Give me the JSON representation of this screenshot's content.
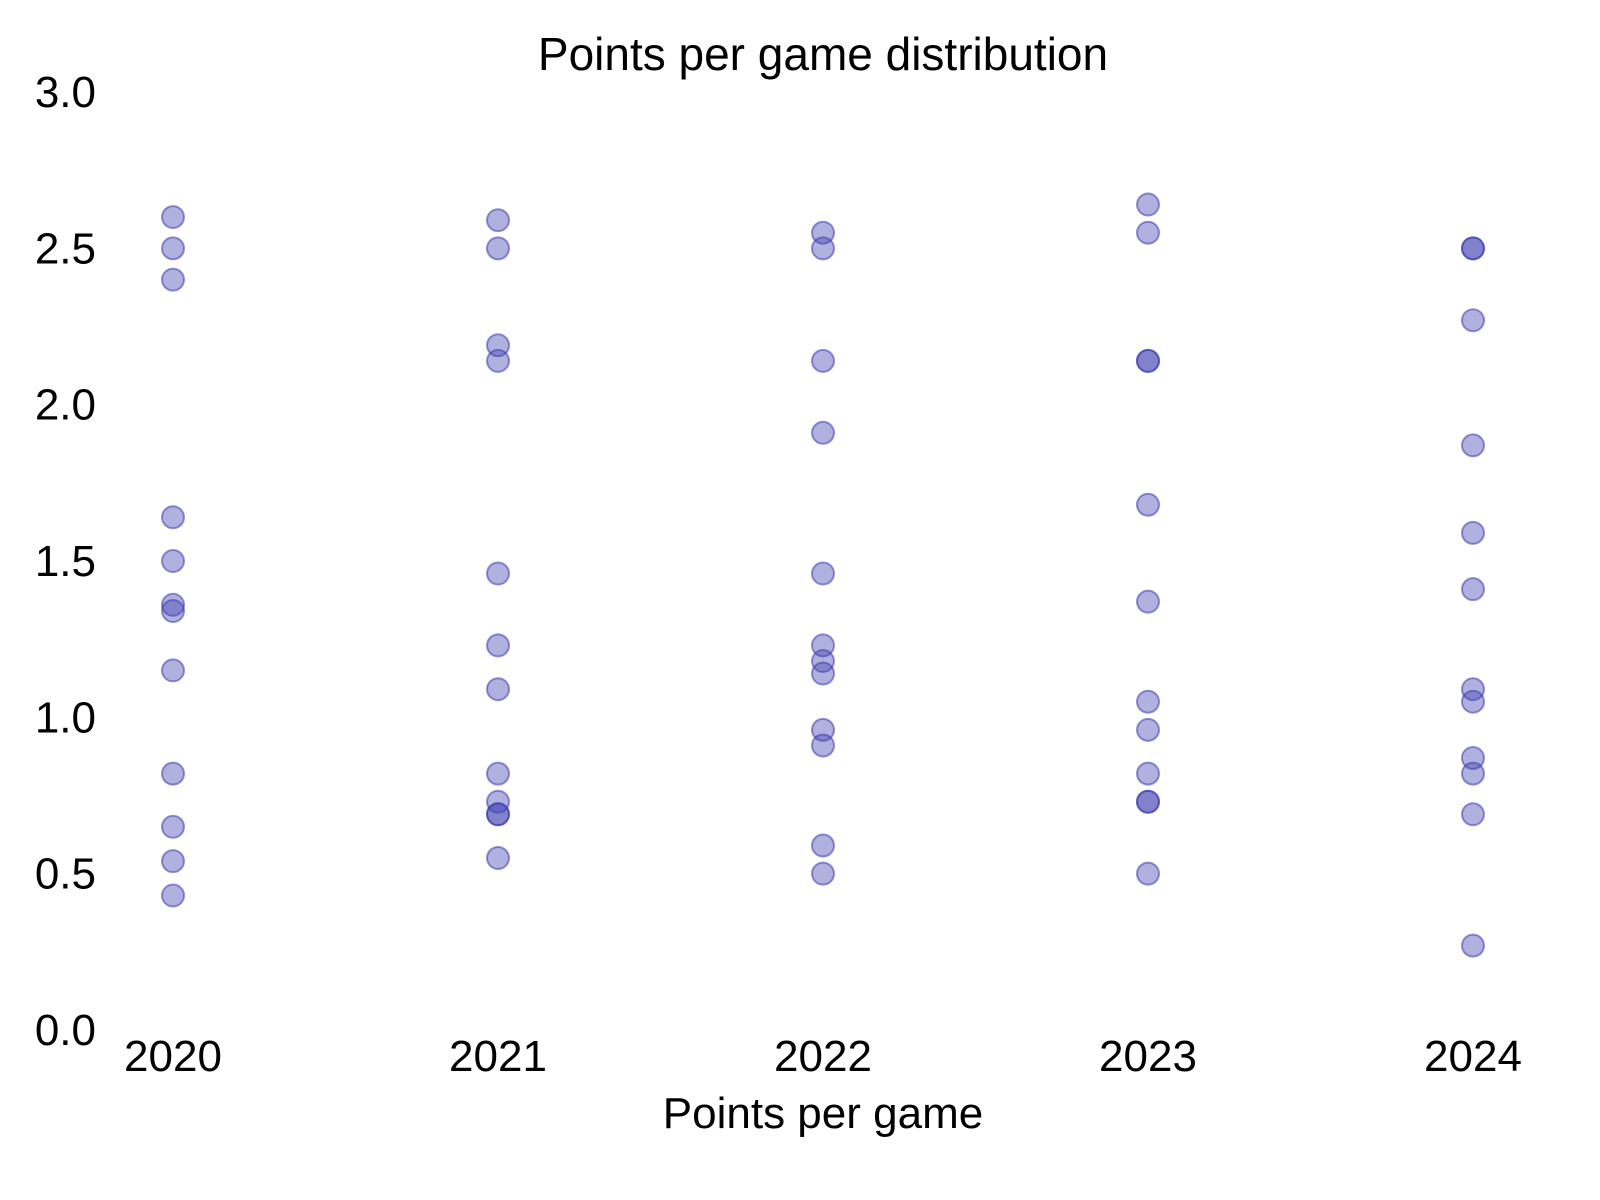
{
  "chart_data": {
    "type": "scatter",
    "title": "Points per game distribution",
    "xlabel": "Points per game",
    "ylabel": "",
    "categories": [
      "2020",
      "2021",
      "2022",
      "2023",
      "2024"
    ],
    "ylim": [
      0.0,
      3.0
    ],
    "yticks": [
      "0.0",
      "0.5",
      "1.0",
      "1.5",
      "2.0",
      "2.5",
      "3.0"
    ],
    "grid": false,
    "marker_color": "#3b3bb0",
    "marker_opacity": 0.4,
    "series": [
      {
        "category": "2020",
        "values": [
          2.6,
          2.5,
          2.4,
          1.64,
          1.5,
          1.36,
          1.34,
          1.15,
          0.82,
          0.65,
          0.54,
          0.43
        ]
      },
      {
        "category": "2021",
        "values": [
          2.59,
          2.5,
          2.19,
          2.14,
          1.46,
          1.23,
          1.09,
          0.82,
          0.73,
          0.69,
          0.69,
          0.55
        ]
      },
      {
        "category": "2022",
        "values": [
          2.55,
          2.5,
          2.14,
          1.91,
          1.46,
          1.23,
          1.18,
          1.14,
          0.96,
          0.91,
          0.59,
          0.5
        ]
      },
      {
        "category": "2023",
        "values": [
          2.64,
          2.55,
          2.14,
          2.14,
          1.68,
          1.37,
          1.05,
          0.96,
          0.82,
          0.73,
          0.73,
          0.5
        ]
      },
      {
        "category": "2024",
        "values": [
          2.5,
          2.5,
          2.27,
          1.87,
          1.59,
          1.41,
          1.09,
          1.05,
          0.87,
          0.82,
          0.69,
          0.27
        ]
      }
    ]
  }
}
